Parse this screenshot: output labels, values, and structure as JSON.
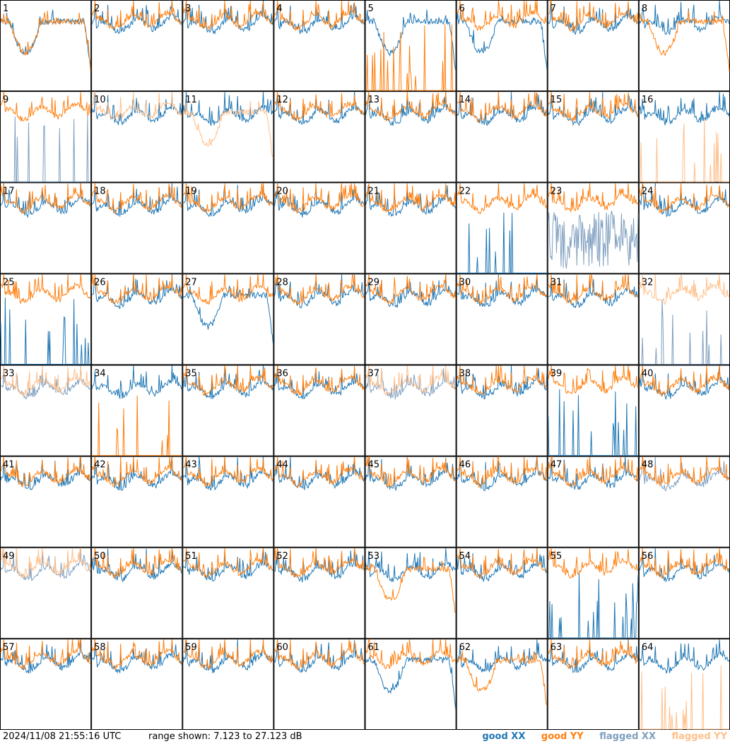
{
  "footer": {
    "timestamp": "2024/11/08 21:55:16 UTC",
    "range_text": "range shown: 7.123 to 27.123 dB"
  },
  "legend": {
    "good_xx": "good XX",
    "good_yy": "good YY",
    "flagged_xx": "flagged XX",
    "flagged_yy": "flagged YY"
  },
  "colors": {
    "good_xx": "#1f77b4",
    "good_yy": "#ff7f0e",
    "flagged_xx": "#7f9fbf",
    "flagged_yy": "#ffbf8a"
  },
  "chart_data": {
    "type": "line",
    "layout": "8x8 grid of spectra",
    "ylim": [
      7.123,
      27.123
    ],
    "yunit": "dB",
    "panels": [
      {
        "id": 1,
        "xx": "good",
        "yy": "good",
        "xx_shape": "dip",
        "yy_shape": "dip"
      },
      {
        "id": 2,
        "xx": "good",
        "yy": "good"
      },
      {
        "id": 3,
        "xx": "good",
        "yy": "good"
      },
      {
        "id": 4,
        "xx": "good",
        "yy": "good"
      },
      {
        "id": 5,
        "xx": "good",
        "yy": "good",
        "xx_shape": "dip",
        "yy_shape": "spikes"
      },
      {
        "id": 6,
        "xx": "good",
        "yy": "good",
        "xx_shape": "dip"
      },
      {
        "id": 7,
        "xx": "good",
        "yy": "good"
      },
      {
        "id": 8,
        "xx": "good",
        "yy": "good",
        "yy_shape": "dip"
      },
      {
        "id": 9,
        "xx": "flagged",
        "yy": "good",
        "xx_shape": "spikes"
      },
      {
        "id": 10,
        "xx": "good",
        "yy": "flagged"
      },
      {
        "id": 11,
        "xx": "good",
        "yy": "flagged",
        "yy_shape": "dip"
      },
      {
        "id": 12,
        "xx": "good",
        "yy": "good"
      },
      {
        "id": 13,
        "xx": "good",
        "yy": "good"
      },
      {
        "id": 14,
        "xx": "good",
        "yy": "good"
      },
      {
        "id": 15,
        "xx": "good",
        "yy": "good"
      },
      {
        "id": 16,
        "xx": "good",
        "yy": "flagged",
        "yy_shape": "spikes"
      },
      {
        "id": 17,
        "xx": "good",
        "yy": "good"
      },
      {
        "id": 18,
        "xx": "good",
        "yy": "good"
      },
      {
        "id": 19,
        "xx": "good",
        "yy": "good"
      },
      {
        "id": 20,
        "xx": "good",
        "yy": "good"
      },
      {
        "id": 21,
        "xx": "good",
        "yy": "good"
      },
      {
        "id": 22,
        "xx": "good",
        "yy": "good",
        "xx_shape": "spikes"
      },
      {
        "id": 23,
        "xx": "flagged",
        "yy": "good",
        "xx_shape": "noisy"
      },
      {
        "id": 24,
        "xx": "good",
        "yy": "good"
      },
      {
        "id": 25,
        "xx": "good",
        "yy": "good",
        "xx_shape": "spikes"
      },
      {
        "id": 26,
        "xx": "good",
        "yy": "good"
      },
      {
        "id": 27,
        "xx": "good",
        "yy": "good",
        "xx_shape": "dip"
      },
      {
        "id": 28,
        "xx": "good",
        "yy": "good"
      },
      {
        "id": 29,
        "xx": "good",
        "yy": "good"
      },
      {
        "id": 30,
        "xx": "good",
        "yy": "good"
      },
      {
        "id": 31,
        "xx": "good",
        "yy": "good"
      },
      {
        "id": 32,
        "xx": "flagged",
        "yy": "flagged",
        "xx_shape": "spikes"
      },
      {
        "id": 33,
        "xx": "flagged",
        "yy": "flagged"
      },
      {
        "id": 34,
        "xx": "good",
        "yy": "good",
        "yy_shape": "spikes"
      },
      {
        "id": 35,
        "xx": "good",
        "yy": "good"
      },
      {
        "id": 36,
        "xx": "good",
        "yy": "good"
      },
      {
        "id": 37,
        "xx": "flagged",
        "yy": "flagged"
      },
      {
        "id": 38,
        "xx": "good",
        "yy": "good"
      },
      {
        "id": 39,
        "xx": "good",
        "yy": "good",
        "xx_shape": "spikes"
      },
      {
        "id": 40,
        "xx": "good",
        "yy": "good"
      },
      {
        "id": 41,
        "xx": "good",
        "yy": "good"
      },
      {
        "id": 42,
        "xx": "good",
        "yy": "good"
      },
      {
        "id": 43,
        "xx": "good",
        "yy": "good"
      },
      {
        "id": 44,
        "xx": "good",
        "yy": "good"
      },
      {
        "id": 45,
        "xx": "good",
        "yy": "good"
      },
      {
        "id": 46,
        "xx": "good",
        "yy": "good"
      },
      {
        "id": 47,
        "xx": "good",
        "yy": "good"
      },
      {
        "id": 48,
        "xx": "flagged",
        "yy": "good"
      },
      {
        "id": 49,
        "xx": "flagged",
        "yy": "flagged"
      },
      {
        "id": 50,
        "xx": "good",
        "yy": "good"
      },
      {
        "id": 51,
        "xx": "good",
        "yy": "good"
      },
      {
        "id": 52,
        "xx": "good",
        "yy": "good"
      },
      {
        "id": 53,
        "xx": "good",
        "yy": "good",
        "yy_shape": "dip"
      },
      {
        "id": 54,
        "xx": "good",
        "yy": "good"
      },
      {
        "id": 55,
        "xx": "good",
        "yy": "good",
        "xx_shape": "spikes"
      },
      {
        "id": 56,
        "xx": "good",
        "yy": "good"
      },
      {
        "id": 57,
        "xx": "good",
        "yy": "good"
      },
      {
        "id": 58,
        "xx": "good",
        "yy": "good"
      },
      {
        "id": 59,
        "xx": "good",
        "yy": "good"
      },
      {
        "id": 60,
        "xx": "good",
        "yy": "good"
      },
      {
        "id": 61,
        "xx": "good",
        "yy": "good",
        "xx_shape": "dip"
      },
      {
        "id": 62,
        "xx": "good",
        "yy": "good",
        "yy_shape": "dip"
      },
      {
        "id": 63,
        "xx": "good",
        "yy": "good"
      },
      {
        "id": 64,
        "xx": "good",
        "yy": "flagged",
        "yy_shape": "spikes"
      }
    ]
  }
}
